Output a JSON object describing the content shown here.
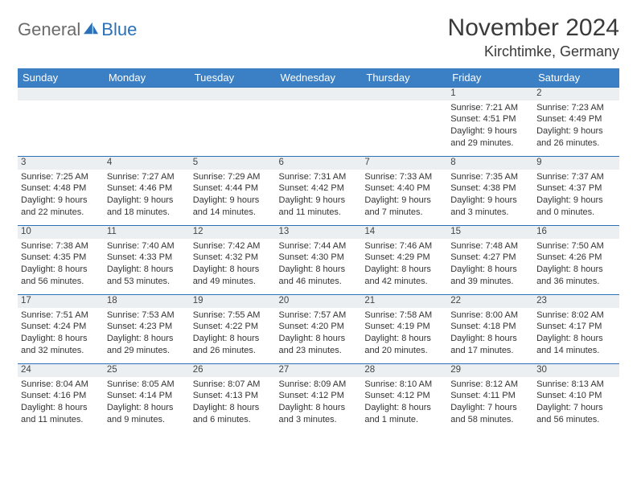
{
  "logo": {
    "part1": "General",
    "part2": "Blue"
  },
  "title": "November 2024",
  "location": "Kirchtimke, Germany",
  "colors": {
    "header_bg": "#3b7fc4",
    "header_text": "#ffffff",
    "daynum_bg": "#eceff1",
    "row_border": "#2b71b8",
    "logo_gray": "#6b6b6b",
    "logo_blue": "#2b71b8"
  },
  "day_headers": [
    "Sunday",
    "Monday",
    "Tuesday",
    "Wednesday",
    "Thursday",
    "Friday",
    "Saturday"
  ],
  "weeks": [
    [
      null,
      null,
      null,
      null,
      null,
      {
        "n": "1",
        "sunrise": "Sunrise: 7:21 AM",
        "sunset": "Sunset: 4:51 PM",
        "daylight": "Daylight: 9 hours and 29 minutes."
      },
      {
        "n": "2",
        "sunrise": "Sunrise: 7:23 AM",
        "sunset": "Sunset: 4:49 PM",
        "daylight": "Daylight: 9 hours and 26 minutes."
      }
    ],
    [
      {
        "n": "3",
        "sunrise": "Sunrise: 7:25 AM",
        "sunset": "Sunset: 4:48 PM",
        "daylight": "Daylight: 9 hours and 22 minutes."
      },
      {
        "n": "4",
        "sunrise": "Sunrise: 7:27 AM",
        "sunset": "Sunset: 4:46 PM",
        "daylight": "Daylight: 9 hours and 18 minutes."
      },
      {
        "n": "5",
        "sunrise": "Sunrise: 7:29 AM",
        "sunset": "Sunset: 4:44 PM",
        "daylight": "Daylight: 9 hours and 14 minutes."
      },
      {
        "n": "6",
        "sunrise": "Sunrise: 7:31 AM",
        "sunset": "Sunset: 4:42 PM",
        "daylight": "Daylight: 9 hours and 11 minutes."
      },
      {
        "n": "7",
        "sunrise": "Sunrise: 7:33 AM",
        "sunset": "Sunset: 4:40 PM",
        "daylight": "Daylight: 9 hours and 7 minutes."
      },
      {
        "n": "8",
        "sunrise": "Sunrise: 7:35 AM",
        "sunset": "Sunset: 4:38 PM",
        "daylight": "Daylight: 9 hours and 3 minutes."
      },
      {
        "n": "9",
        "sunrise": "Sunrise: 7:37 AM",
        "sunset": "Sunset: 4:37 PM",
        "daylight": "Daylight: 9 hours and 0 minutes."
      }
    ],
    [
      {
        "n": "10",
        "sunrise": "Sunrise: 7:38 AM",
        "sunset": "Sunset: 4:35 PM",
        "daylight": "Daylight: 8 hours and 56 minutes."
      },
      {
        "n": "11",
        "sunrise": "Sunrise: 7:40 AM",
        "sunset": "Sunset: 4:33 PM",
        "daylight": "Daylight: 8 hours and 53 minutes."
      },
      {
        "n": "12",
        "sunrise": "Sunrise: 7:42 AM",
        "sunset": "Sunset: 4:32 PM",
        "daylight": "Daylight: 8 hours and 49 minutes."
      },
      {
        "n": "13",
        "sunrise": "Sunrise: 7:44 AM",
        "sunset": "Sunset: 4:30 PM",
        "daylight": "Daylight: 8 hours and 46 minutes."
      },
      {
        "n": "14",
        "sunrise": "Sunrise: 7:46 AM",
        "sunset": "Sunset: 4:29 PM",
        "daylight": "Daylight: 8 hours and 42 minutes."
      },
      {
        "n": "15",
        "sunrise": "Sunrise: 7:48 AM",
        "sunset": "Sunset: 4:27 PM",
        "daylight": "Daylight: 8 hours and 39 minutes."
      },
      {
        "n": "16",
        "sunrise": "Sunrise: 7:50 AM",
        "sunset": "Sunset: 4:26 PM",
        "daylight": "Daylight: 8 hours and 36 minutes."
      }
    ],
    [
      {
        "n": "17",
        "sunrise": "Sunrise: 7:51 AM",
        "sunset": "Sunset: 4:24 PM",
        "daylight": "Daylight: 8 hours and 32 minutes."
      },
      {
        "n": "18",
        "sunrise": "Sunrise: 7:53 AM",
        "sunset": "Sunset: 4:23 PM",
        "daylight": "Daylight: 8 hours and 29 minutes."
      },
      {
        "n": "19",
        "sunrise": "Sunrise: 7:55 AM",
        "sunset": "Sunset: 4:22 PM",
        "daylight": "Daylight: 8 hours and 26 minutes."
      },
      {
        "n": "20",
        "sunrise": "Sunrise: 7:57 AM",
        "sunset": "Sunset: 4:20 PM",
        "daylight": "Daylight: 8 hours and 23 minutes."
      },
      {
        "n": "21",
        "sunrise": "Sunrise: 7:58 AM",
        "sunset": "Sunset: 4:19 PM",
        "daylight": "Daylight: 8 hours and 20 minutes."
      },
      {
        "n": "22",
        "sunrise": "Sunrise: 8:00 AM",
        "sunset": "Sunset: 4:18 PM",
        "daylight": "Daylight: 8 hours and 17 minutes."
      },
      {
        "n": "23",
        "sunrise": "Sunrise: 8:02 AM",
        "sunset": "Sunset: 4:17 PM",
        "daylight": "Daylight: 8 hours and 14 minutes."
      }
    ],
    [
      {
        "n": "24",
        "sunrise": "Sunrise: 8:04 AM",
        "sunset": "Sunset: 4:16 PM",
        "daylight": "Daylight: 8 hours and 11 minutes."
      },
      {
        "n": "25",
        "sunrise": "Sunrise: 8:05 AM",
        "sunset": "Sunset: 4:14 PM",
        "daylight": "Daylight: 8 hours and 9 minutes."
      },
      {
        "n": "26",
        "sunrise": "Sunrise: 8:07 AM",
        "sunset": "Sunset: 4:13 PM",
        "daylight": "Daylight: 8 hours and 6 minutes."
      },
      {
        "n": "27",
        "sunrise": "Sunrise: 8:09 AM",
        "sunset": "Sunset: 4:12 PM",
        "daylight": "Daylight: 8 hours and 3 minutes."
      },
      {
        "n": "28",
        "sunrise": "Sunrise: 8:10 AM",
        "sunset": "Sunset: 4:12 PM",
        "daylight": "Daylight: 8 hours and 1 minute."
      },
      {
        "n": "29",
        "sunrise": "Sunrise: 8:12 AM",
        "sunset": "Sunset: 4:11 PM",
        "daylight": "Daylight: 7 hours and 58 minutes."
      },
      {
        "n": "30",
        "sunrise": "Sunrise: 8:13 AM",
        "sunset": "Sunset: 4:10 PM",
        "daylight": "Daylight: 7 hours and 56 minutes."
      }
    ]
  ]
}
